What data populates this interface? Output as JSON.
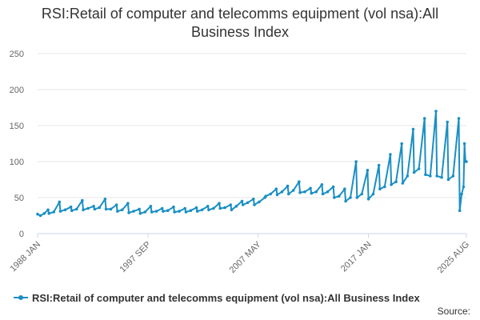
{
  "chart_data": {
    "type": "line",
    "title": "RSI:Retail of computer and telecomms equipment (vol nsa):All Business Index",
    "xlabel": "",
    "ylabel": "",
    "ylim": [
      0,
      250
    ],
    "yticks": [
      0,
      50,
      100,
      150,
      200,
      250
    ],
    "xticks": [
      "1988 JAN",
      "1997 SEP",
      "2007 MAY",
      "2017 JAN",
      "2025 AUG"
    ],
    "x_range": [
      "1988-01",
      "2025-08"
    ],
    "grid": "horizontal",
    "legend_position": "bottom",
    "series": [
      {
        "name": "RSI:Retail of computer and telecomms equipment (vol nsa):All Business Index",
        "color": "#1a8fc4",
        "points": [
          [
            "1988-01",
            27
          ],
          [
            "1988-04",
            25
          ],
          [
            "1988-08",
            28
          ],
          [
            "1988-12",
            33
          ],
          [
            "1989-01",
            28
          ],
          [
            "1989-06",
            30
          ],
          [
            "1989-12",
            44
          ],
          [
            "1990-01",
            31
          ],
          [
            "1990-06",
            33
          ],
          [
            "1990-12",
            37
          ],
          [
            "1991-01",
            32
          ],
          [
            "1991-06",
            34
          ],
          [
            "1991-12",
            46
          ],
          [
            "1992-01",
            33
          ],
          [
            "1992-06",
            35
          ],
          [
            "1992-12",
            38
          ],
          [
            "1993-01",
            34
          ],
          [
            "1993-06",
            36
          ],
          [
            "1993-12",
            48
          ],
          [
            "1994-01",
            34
          ],
          [
            "1994-06",
            34
          ],
          [
            "1994-12",
            40
          ],
          [
            "1995-01",
            31
          ],
          [
            "1995-06",
            33
          ],
          [
            "1995-12",
            42
          ],
          [
            "1996-01",
            29
          ],
          [
            "1996-06",
            31
          ],
          [
            "1996-12",
            34
          ],
          [
            "1997-01",
            28
          ],
          [
            "1997-06",
            30
          ],
          [
            "1997-12",
            38
          ],
          [
            "1998-01",
            30
          ],
          [
            "1998-06",
            31
          ],
          [
            "1998-12",
            35
          ],
          [
            "1999-01",
            31
          ],
          [
            "1999-06",
            32
          ],
          [
            "1999-12",
            37
          ],
          [
            "2000-01",
            30
          ],
          [
            "2000-06",
            31
          ],
          [
            "2000-12",
            35
          ],
          [
            "2001-01",
            30
          ],
          [
            "2001-06",
            32
          ],
          [
            "2001-12",
            36
          ],
          [
            "2002-01",
            31
          ],
          [
            "2002-06",
            33
          ],
          [
            "2002-12",
            38
          ],
          [
            "2003-01",
            33
          ],
          [
            "2003-06",
            35
          ],
          [
            "2003-12",
            42
          ],
          [
            "2004-01",
            35
          ],
          [
            "2004-06",
            36
          ],
          [
            "2004-12",
            40
          ],
          [
            "2005-01",
            33
          ],
          [
            "2005-06",
            38
          ],
          [
            "2005-12",
            45
          ],
          [
            "2006-01",
            40
          ],
          [
            "2006-06",
            43
          ],
          [
            "2006-12",
            48
          ],
          [
            "2007-01",
            40
          ],
          [
            "2007-06",
            44
          ],
          [
            "2007-12",
            50
          ],
          [
            "2008-01",
            52
          ],
          [
            "2008-06",
            55
          ],
          [
            "2008-12",
            62
          ],
          [
            "2009-01",
            54
          ],
          [
            "2009-06",
            58
          ],
          [
            "2009-12",
            66
          ],
          [
            "2010-01",
            55
          ],
          [
            "2010-06",
            60
          ],
          [
            "2010-12",
            72
          ],
          [
            "2011-01",
            57
          ],
          [
            "2011-06",
            58
          ],
          [
            "2011-12",
            63
          ],
          [
            "2012-01",
            56
          ],
          [
            "2012-06",
            58
          ],
          [
            "2012-12",
            68
          ],
          [
            "2013-01",
            55
          ],
          [
            "2013-06",
            58
          ],
          [
            "2013-12",
            65
          ],
          [
            "2014-01",
            50
          ],
          [
            "2014-06",
            52
          ],
          [
            "2014-12",
            62
          ],
          [
            "2015-01",
            45
          ],
          [
            "2015-06",
            50
          ],
          [
            "2015-12",
            100
          ],
          [
            "2016-01",
            50
          ],
          [
            "2016-06",
            55
          ],
          [
            "2016-12",
            88
          ],
          [
            "2017-01",
            48
          ],
          [
            "2017-06",
            55
          ],
          [
            "2017-12",
            95
          ],
          [
            "2018-01",
            62
          ],
          [
            "2018-06",
            65
          ],
          [
            "2018-12",
            110
          ],
          [
            "2019-01",
            68
          ],
          [
            "2019-06",
            72
          ],
          [
            "2019-12",
            125
          ],
          [
            "2020-01",
            70
          ],
          [
            "2020-06",
            80
          ],
          [
            "2020-12",
            145
          ],
          [
            "2021-01",
            85
          ],
          [
            "2021-06",
            90
          ],
          [
            "2021-12",
            160
          ],
          [
            "2022-01",
            82
          ],
          [
            "2022-06",
            80
          ],
          [
            "2022-12",
            170
          ],
          [
            "2023-01",
            80
          ],
          [
            "2023-06",
            78
          ],
          [
            "2023-12",
            155
          ],
          [
            "2024-01",
            75
          ],
          [
            "2024-06",
            80
          ],
          [
            "2024-12",
            160
          ],
          [
            "2025-01",
            32
          ],
          [
            "2025-03",
            55
          ],
          [
            "2025-05",
            65
          ],
          [
            "2025-06",
            125
          ],
          [
            "2025-07",
            100
          ],
          [
            "2025-08",
            100
          ]
        ]
      }
    ]
  },
  "source_label": "Source:"
}
